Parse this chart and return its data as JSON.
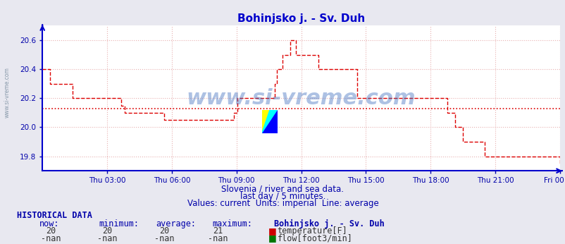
{
  "title": "Bohinjsko j. - Sv. Duh",
  "bg_color": "#e8e8f0",
  "plot_bg_color": "#ffffff",
  "grid_color": "#e8b0b0",
  "line_color": "#dd0000",
  "avg_line_color": "#dd0000",
  "axis_color": "#0000cc",
  "title_color": "#0000cc",
  "label_color": "#0000aa",
  "ylim": [
    19.7,
    20.7
  ],
  "yticks": [
    19.8,
    20.0,
    20.2,
    20.4,
    20.6
  ],
  "xtick_labels": [
    "Thu 03:00",
    "Thu 06:00",
    "Thu 09:00",
    "Thu 12:00",
    "Thu 15:00",
    "Thu 18:00",
    "Thu 21:00",
    "Fri 00:00"
  ],
  "xtick_positions": [
    0.125,
    0.25,
    0.375,
    0.5,
    0.625,
    0.75,
    0.875,
    1.0
  ],
  "average_value": 20.13,
  "watermark": "www.si-vreme.com",
  "subtitle1": "Slovenia / river and sea data.",
  "subtitle2": "last day / 5 minutes.",
  "subtitle3": "Values: current  Units: imperial  Line: average",
  "hist_label": "HISTORICAL DATA",
  "col_headers": [
    "now:",
    "minimum:",
    "average:",
    "maximum:",
    "Bohinjsko j. - Sv. Duh"
  ],
  "row1_values": [
    "20",
    "20",
    "20",
    "21"
  ],
  "row1_label": "temperature[F]",
  "row2_values": [
    "-nan",
    "-nan",
    "-nan",
    "-nan"
  ],
  "row2_label": "flow[foot3/min]",
  "temp_color": "#cc0000",
  "flow_color": "#007700",
  "temperature_data": [
    20.4,
    20.4,
    20.4,
    20.4,
    20.3,
    20.3,
    20.3,
    20.3,
    20.3,
    20.3,
    20.3,
    20.3,
    20.3,
    20.3,
    20.3,
    20.3,
    20.2,
    20.2,
    20.2,
    20.2,
    20.2,
    20.2,
    20.2,
    20.2,
    20.2,
    20.2,
    20.2,
    20.2,
    20.2,
    20.2,
    20.2,
    20.2,
    20.2,
    20.2,
    20.2,
    20.2,
    20.2,
    20.2,
    20.2,
    20.2,
    20.2,
    20.2,
    20.15,
    20.15,
    20.1,
    20.1,
    20.1,
    20.1,
    20.1,
    20.1,
    20.1,
    20.1,
    20.1,
    20.1,
    20.1,
    20.1,
    20.1,
    20.1,
    20.1,
    20.1,
    20.1,
    20.1,
    20.1,
    20.1,
    20.1,
    20.05,
    20.05,
    20.05,
    20.05,
    20.05,
    20.05,
    20.05,
    20.05,
    20.05,
    20.05,
    20.05,
    20.05,
    20.05,
    20.05,
    20.05,
    20.05,
    20.05,
    20.05,
    20.05,
    20.05,
    20.05,
    20.05,
    20.05,
    20.05,
    20.05,
    20.05,
    20.05,
    20.05,
    20.05,
    20.05,
    20.05,
    20.05,
    20.05,
    20.05,
    20.05,
    20.05,
    20.05,
    20.1,
    20.1,
    20.2,
    20.2,
    20.2,
    20.2,
    20.2,
    20.2,
    20.2,
    20.2,
    20.2,
    20.2,
    20.2,
    20.2,
    20.2,
    20.2,
    20.2,
    20.2,
    20.2,
    20.2,
    20.2,
    20.2,
    20.3,
    20.4,
    20.4,
    20.4,
    20.5,
    20.5,
    20.5,
    20.5,
    20.6,
    20.6,
    20.6,
    20.5,
    20.5,
    20.5,
    20.5,
    20.5,
    20.5,
    20.5,
    20.5,
    20.5,
    20.5,
    20.5,
    20.5,
    20.4,
    20.4,
    20.4,
    20.4,
    20.4,
    20.4,
    20.4,
    20.4,
    20.4,
    20.4,
    20.4,
    20.4,
    20.4,
    20.4,
    20.4,
    20.4,
    20.4,
    20.4,
    20.4,
    20.4,
    20.4,
    20.2,
    20.2,
    20.2,
    20.2,
    20.2,
    20.2,
    20.2,
    20.2,
    20.2,
    20.2,
    20.2,
    20.2,
    20.2,
    20.2,
    20.2,
    20.2,
    20.2,
    20.2,
    20.2,
    20.2,
    20.2,
    20.2,
    20.2,
    20.2,
    20.2,
    20.2,
    20.2,
    20.2,
    20.2,
    20.2,
    20.2,
    20.2,
    20.2,
    20.2,
    20.2,
    20.2,
    20.2,
    20.2,
    20.2,
    20.2,
    20.2,
    20.2,
    20.2,
    20.2,
    20.2,
    20.2,
    20.2,
    20.2,
    20.1,
    20.1,
    20.1,
    20.1,
    20.0,
    20.0,
    20.0,
    20.0,
    19.9,
    19.9,
    19.9,
    19.9,
    19.9,
    19.9,
    19.9,
    19.9,
    19.9,
    19.9,
    19.9,
    19.9,
    19.8,
    19.8,
    19.8,
    19.8,
    19.8,
    19.8,
    19.8,
    19.8,
    19.8,
    19.8,
    19.8,
    19.8,
    19.8,
    19.8,
    19.8,
    19.8,
    19.8,
    19.8,
    19.8,
    19.8,
    19.8,
    19.8,
    19.8,
    19.8,
    19.8,
    19.8,
    19.8,
    19.8,
    19.8,
    19.8,
    19.8,
    19.8,
    19.8,
    19.8,
    19.8,
    19.8,
    19.8,
    19.8,
    19.8,
    19.8,
    19.75
  ]
}
